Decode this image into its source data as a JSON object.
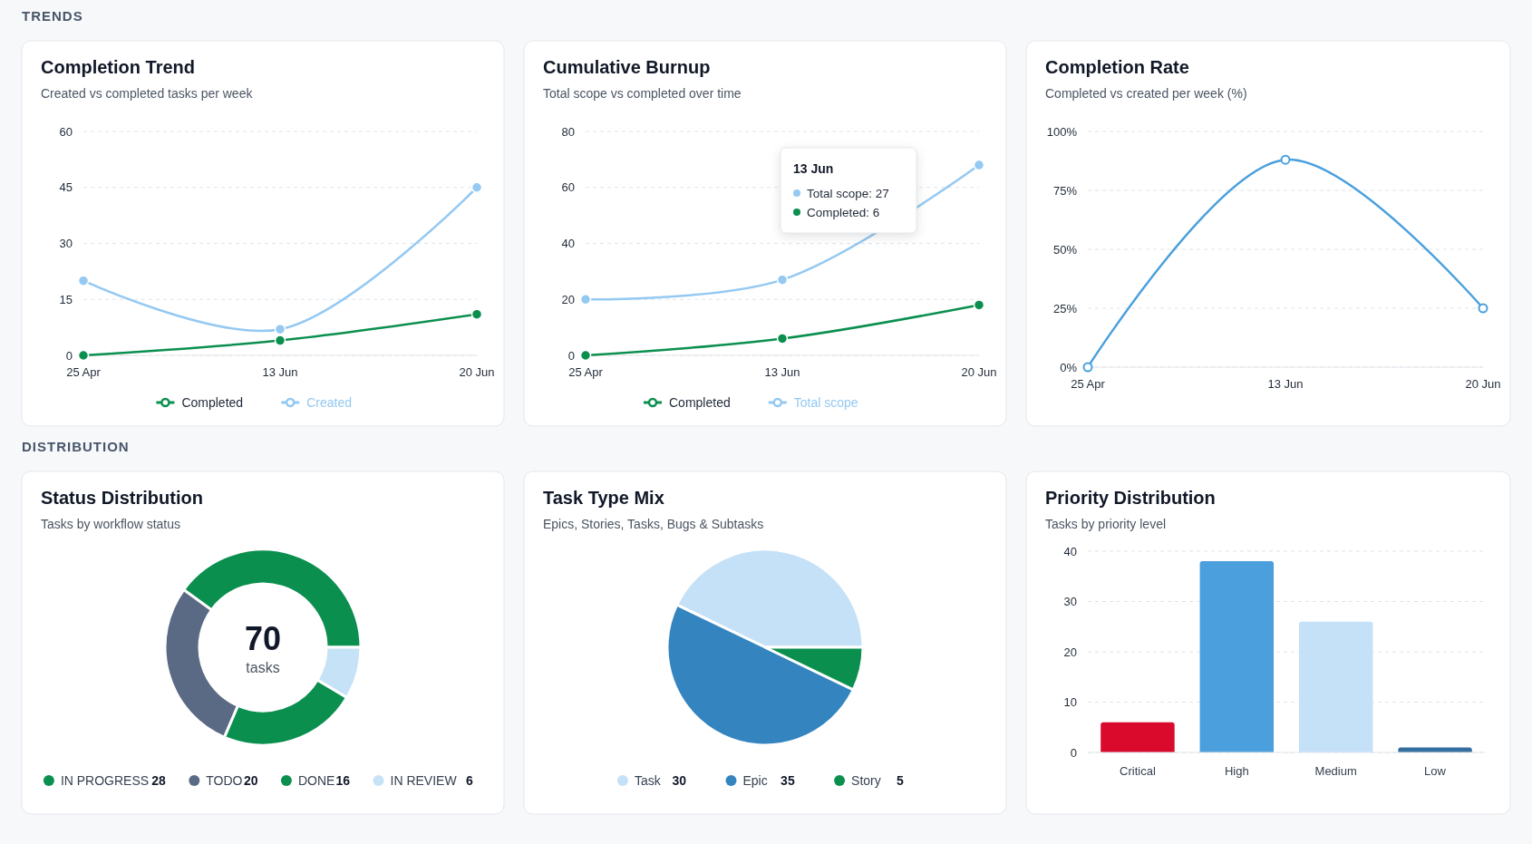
{
  "chart_data": [
    {
      "type": "line",
      "title": "Completion Trend",
      "subtitle": "Created vs completed tasks per week",
      "categories": [
        "25 Apr",
        "13 Jun",
        "20 Jun"
      ],
      "series": [
        {
          "name": "Completed",
          "color": "#0b8f4f",
          "values": [
            0,
            4,
            11
          ]
        },
        {
          "name": "Created",
          "color": "#94c9f2",
          "values": [
            20,
            7,
            45
          ]
        }
      ],
      "ylim": [
        0,
        60
      ],
      "yticks": [
        0,
        15,
        30,
        45,
        60
      ],
      "grid": "y",
      "legend": "bottom",
      "marker": "circle",
      "annotations": [
        "TRENDS"
      ]
    },
    {
      "type": "line",
      "title": "Cumulative Burnup",
      "subtitle": "Total scope vs completed over time",
      "categories": [
        "25 Apr",
        "13 Jun",
        "20 Jun"
      ],
      "series": [
        {
          "name": "Completed",
          "color": "#0b8f4f",
          "values": [
            0,
            6,
            18
          ]
        },
        {
          "name": "Total scope",
          "color": "#94c9f2",
          "values": [
            20,
            27,
            68
          ]
        }
      ],
      "ylim": [
        0,
        80
      ],
      "yticks": [
        0,
        20,
        40,
        60,
        80
      ],
      "grid": "y",
      "legend": "bottom",
      "marker": "circle",
      "annotations": [
        "13 Jun",
        "Total scope: 27",
        "Completed: 6"
      ]
    },
    {
      "type": "line",
      "title": "Completion Rate",
      "subtitle": "Completed vs created per week (%)",
      "categories": [
        "25 Apr",
        "13 Jun",
        "20 Jun"
      ],
      "series": [
        {
          "color": "#4aa0dd",
          "values": [
            0,
            88,
            25
          ]
        }
      ],
      "ylim": [
        0,
        100
      ],
      "yticks": [
        {
          "value": 0,
          "label": "0%"
        },
        {
          "value": 25,
          "label": "25%"
        },
        {
          "value": 50,
          "label": "50%"
        },
        {
          "value": 75,
          "label": "75%"
        },
        {
          "value": 100,
          "label": "100%"
        }
      ],
      "grid": "y",
      "marker": "circle"
    },
    {
      "type": "donut",
      "title": "Status Distribution",
      "subtitle": "Tasks by workflow status",
      "categories": [
        "IN PROGRESS",
        "TODO",
        "DONE",
        "IN REVIEW"
      ],
      "values": [
        28,
        20,
        16,
        6
      ],
      "colors": [
        "#0b8f4f",
        "#5a6a85",
        "#0b8f4f",
        "#c6e2f7"
      ],
      "legend": "bottom",
      "data_labels": true,
      "annotations": [
        "DISTRIBUTION",
        "70",
        "tasks"
      ]
    },
    {
      "type": "pie",
      "title": "Task Type Mix",
      "subtitle": "Epics, Stories, Tasks, Bugs & Subtasks",
      "categories": [
        "Task",
        "Epic",
        "Story"
      ],
      "values": [
        30,
        35,
        5
      ],
      "colors": [
        "#c5e1f7",
        "#3484c0",
        "#0b8f4f"
      ],
      "legend": "bottom",
      "data_labels": true
    },
    {
      "type": "bar",
      "title": "Priority Distribution",
      "subtitle": "Tasks by priority level",
      "categories": [
        "Critical",
        "High",
        "Medium",
        "Low"
      ],
      "values": [
        6,
        38,
        26,
        1
      ],
      "colors": [
        "#d90a2c",
        "#4a9fdc",
        "#c5e1f7",
        "#346fa0"
      ],
      "ylim": [
        0,
        40
      ],
      "yticks": [
        0,
        10,
        20,
        30,
        40
      ],
      "grid": "y"
    }
  ]
}
